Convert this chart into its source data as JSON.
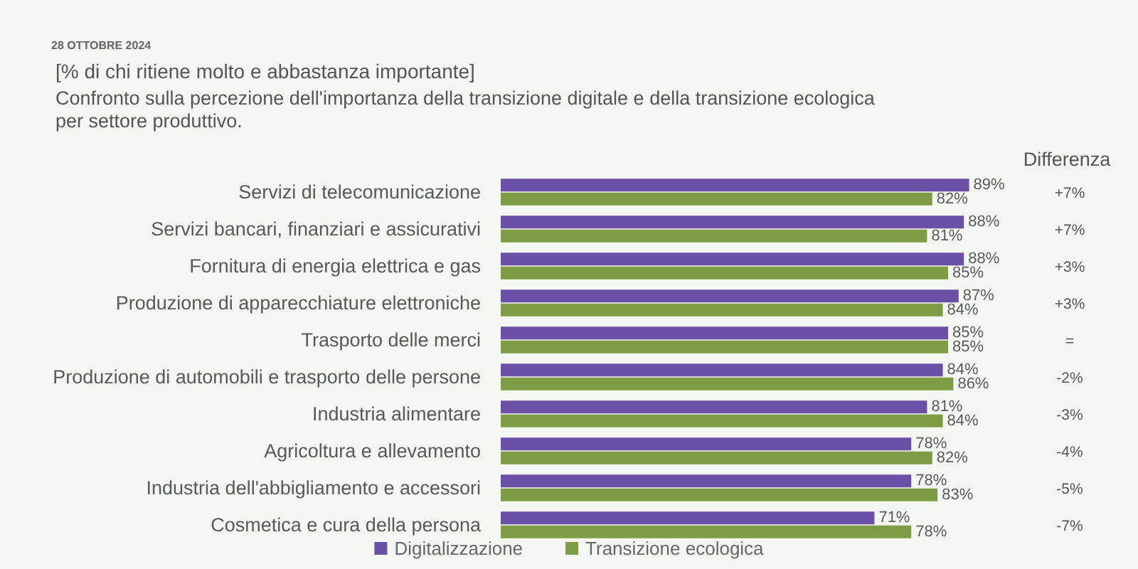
{
  "chart_data": {
    "type": "bar",
    "orientation": "horizontal",
    "title": "Confronto sulla percezione dell'importanza della transizione digitale e della transizione ecologica per settore produttivo.",
    "subtitle": "[% di chi ritiene molto e abbastanza importante]",
    "categories": [
      "Servizi di telecomunicazione",
      "Servizi bancari, finanziari e assicurativi",
      "Fornitura di energia elettrica e gas",
      "Produzione di apparecchiature elettroniche",
      "Trasporto delle merci",
      "Produzione di automobili e trasporto delle persone",
      "Industria alimentare",
      "Agricoltura e allevamento",
      "Industria dell'abbigliamento e accessori",
      "Cosmetica e cura della persona"
    ],
    "series": [
      {
        "name": "Digitalizzazione",
        "color": "#6a50a7",
        "values": [
          89,
          88,
          88,
          87,
          85,
          84,
          81,
          78,
          78,
          71
        ],
        "value_labels": [
          "89%",
          "88%",
          "88%",
          "87%",
          "85%",
          "84%",
          "81%",
          "78%",
          "78%",
          "71%"
        ]
      },
      {
        "name": "Transizione ecologica",
        "color": "#7d9c45",
        "values": [
          82,
          81,
          85,
          84,
          85,
          86,
          84,
          82,
          83,
          78
        ],
        "value_labels": [
          "82%",
          "81%",
          "85%",
          "84%",
          "85%",
          "86%",
          "84%",
          "82%",
          "83%",
          "78%"
        ]
      }
    ],
    "annotations": [
      "28 OTTOBRE 2024",
      "Differenza",
      "+7%",
      "+7%",
      "+3%",
      "+3%",
      "=",
      "-2%",
      "-3%",
      "-4%",
      "-5%",
      "-7%"
    ],
    "legend": "bottom",
    "tick_labels": "y"
  }
}
